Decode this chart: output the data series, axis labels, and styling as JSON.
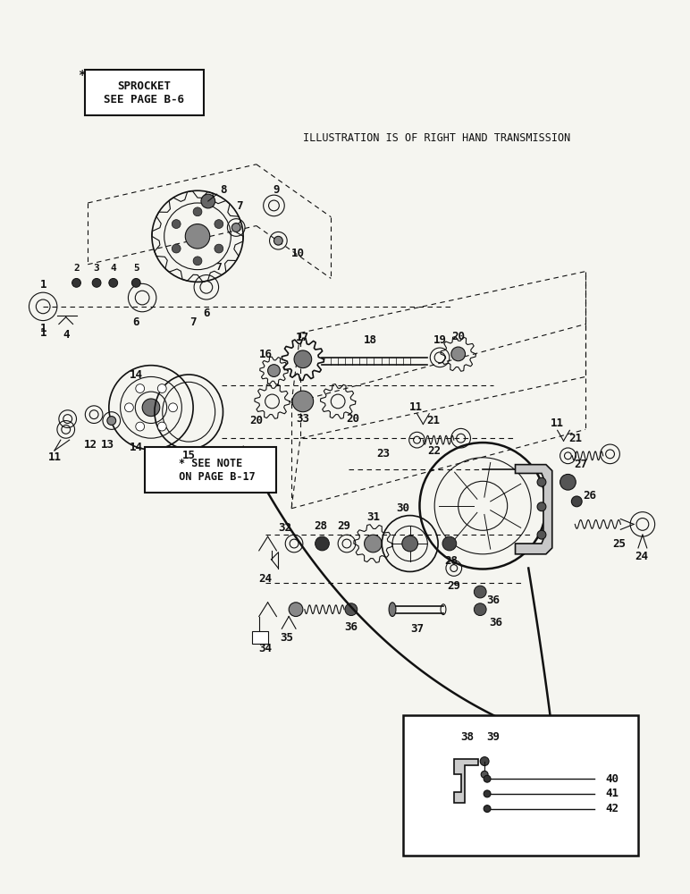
{
  "bg_color": "#f5f5f0",
  "line_color": "#1a1a1a",
  "title": "ILLUSTRATION IS OF RIGHT HAND TRANSMISSION",
  "sprocket_box_text": "SPROCKET\nSEE PAGE B-6",
  "note_box_text": "* SEE NOTE\n  ON PAGE B-17"
}
